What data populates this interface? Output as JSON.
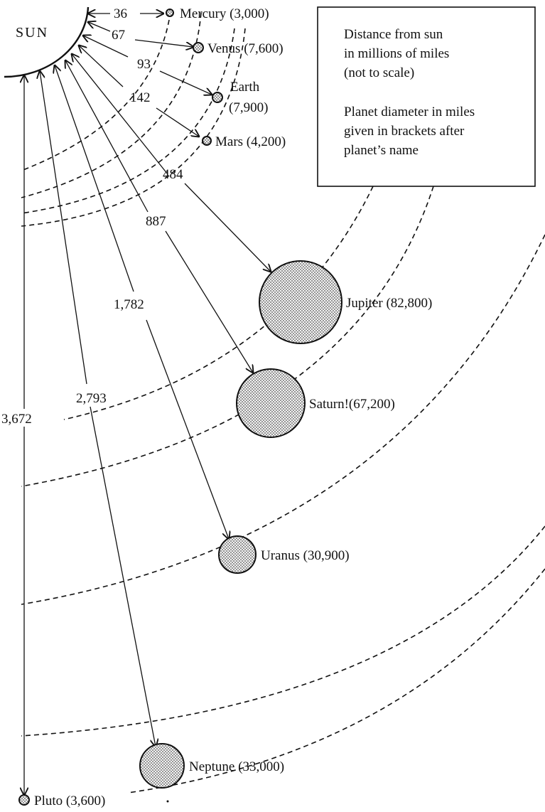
{
  "sun": {
    "label": "SUN"
  },
  "legend": {
    "lines": [
      "Distance from sun",
      "in millions of miles",
      "(not to scale)",
      "Planet diameter in miles",
      "given in brackets after",
      "planet’s name"
    ]
  },
  "planets": [
    {
      "name": "Mercury",
      "diameter_miles": 3000,
      "distance_mmi": 36,
      "label": "Mercury (3,000)",
      "distance_label": "36"
    },
    {
      "name": "Venus",
      "diameter_miles": 7600,
      "distance_mmi": 67,
      "label": "Venus (7,600)",
      "distance_label": "67"
    },
    {
      "name": "Earth",
      "diameter_miles": 7900,
      "distance_mmi": 93,
      "label_line1": "Earth",
      "label_line2": "(7,900)",
      "distance_label": "93"
    },
    {
      "name": "Mars",
      "diameter_miles": 4200,
      "distance_mmi": 142,
      "label": "Mars (4,200)",
      "distance_label": "142"
    },
    {
      "name": "Jupiter",
      "diameter_miles": 82800,
      "distance_mmi": 484,
      "label": "Jupiter (82,800)",
      "distance_label": "484"
    },
    {
      "name": "Saturn",
      "diameter_miles": 67200,
      "distance_mmi": 887,
      "label": "Saturn!(67,200)",
      "distance_label": "887"
    },
    {
      "name": "Uranus",
      "diameter_miles": 30900,
      "distance_mmi": 1782,
      "label": "Uranus (30,900)",
      "distance_label": "1,782"
    },
    {
      "name": "Neptune",
      "diameter_miles": 33000,
      "distance_mmi": 2793,
      "label": "Neptune (33,000)",
      "distance_label": "2,793"
    },
    {
      "name": "Pluto",
      "diameter_miles": 3600,
      "distance_mmi": 3672,
      "label": "Pluto (3,600)",
      "distance_label": "3,672"
    }
  ]
}
